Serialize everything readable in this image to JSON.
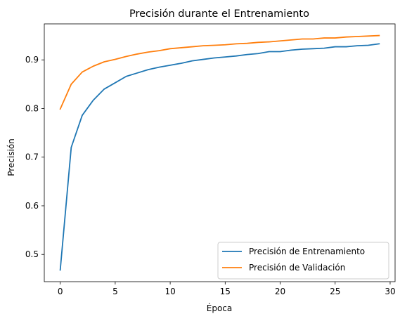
{
  "chart_data": {
    "type": "line",
    "title": "Precisión durante el Entrenamiento",
    "xlabel": "Época",
    "ylabel": "Precisión",
    "xlim": [
      -1.45,
      30.45
    ],
    "ylim": [
      0.444,
      0.974
    ],
    "x_ticks": [
      0,
      5,
      10,
      15,
      20,
      25,
      30
    ],
    "y_ticks": [
      0.5,
      0.6,
      0.7,
      0.8,
      0.9
    ],
    "x_tick_labels": [
      "0",
      "5",
      "10",
      "15",
      "20",
      "25",
      "30"
    ],
    "y_tick_labels": [
      "0.5",
      "0.6",
      "0.7",
      "0.8",
      "0.9"
    ],
    "grid": false,
    "legend_position": "lower-right",
    "x": [
      0,
      1,
      2,
      3,
      4,
      5,
      6,
      7,
      8,
      9,
      10,
      11,
      12,
      13,
      14,
      15,
      16,
      17,
      18,
      19,
      20,
      21,
      22,
      23,
      24,
      25,
      26,
      27,
      28,
      29
    ],
    "series": [
      {
        "name": "Precisión de Entrenamiento",
        "color": "#1f77b4",
        "values": [
          0.468,
          0.72,
          0.786,
          0.817,
          0.84,
          0.853,
          0.866,
          0.873,
          0.88,
          0.885,
          0.889,
          0.893,
          0.898,
          0.901,
          0.904,
          0.906,
          0.908,
          0.911,
          0.913,
          0.917,
          0.917,
          0.92,
          0.922,
          0.923,
          0.924,
          0.927,
          0.927,
          0.929,
          0.93,
          0.933
        ]
      },
      {
        "name": "Precisión de Validación",
        "color": "#ff7f0e",
        "values": [
          0.799,
          0.85,
          0.875,
          0.887,
          0.896,
          0.901,
          0.907,
          0.912,
          0.916,
          0.919,
          0.923,
          0.925,
          0.927,
          0.929,
          0.93,
          0.931,
          0.933,
          0.934,
          0.936,
          0.937,
          0.939,
          0.941,
          0.943,
          0.943,
          0.945,
          0.945,
          0.947,
          0.948,
          0.949,
          0.95
        ]
      }
    ]
  }
}
